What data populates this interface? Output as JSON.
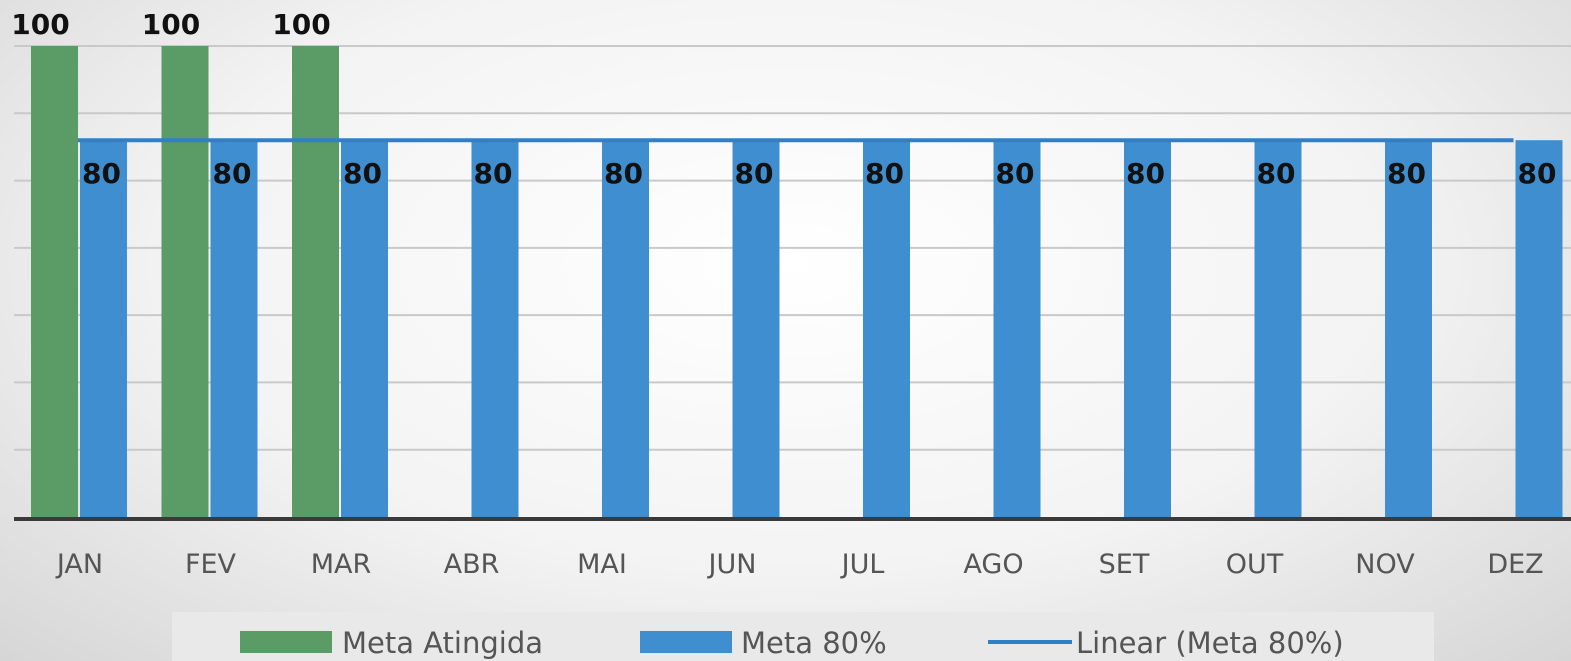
{
  "chart_data": {
    "type": "bar",
    "categories": [
      "JAN",
      "FEV",
      "MAR",
      "ABR",
      "MAI",
      "JUN",
      "JUL",
      "AGO",
      "SET",
      "OUT",
      "NOV",
      "DEZ"
    ],
    "series": [
      {
        "name": "Meta Atingida",
        "kind": "bar",
        "color": "#5b9b66",
        "values": [
          100,
          100,
          100,
          null,
          null,
          null,
          null,
          null,
          null,
          null,
          null,
          null
        ]
      },
      {
        "name": "Meta 80%",
        "kind": "bar",
        "color": "#3f8ecf",
        "values": [
          80,
          80,
          80,
          80,
          80,
          80,
          80,
          80,
          80,
          80,
          80,
          80
        ]
      },
      {
        "name": "Linear (Meta 80%)",
        "kind": "line",
        "color": "#2f80c8",
        "values": [
          80,
          80,
          80,
          80,
          80,
          80,
          80,
          80,
          80,
          80,
          80,
          80
        ]
      }
    ],
    "data_labels": {
      "Meta Atingida": [
        "100",
        "100",
        "100"
      ],
      "Meta 80%": [
        "80",
        "80",
        "80",
        "80",
        "80",
        "80",
        "80",
        "80",
        "80",
        "80",
        "80",
        "80"
      ]
    },
    "ylim": [
      0,
      100
    ],
    "y_gridlines": [
      0,
      14.29,
      28.57,
      42.86,
      57.14,
      71.43,
      85.71,
      100
    ],
    "grid": true,
    "legend_position": "bottom",
    "title": "",
    "xlabel": "",
    "ylabel": ""
  }
}
